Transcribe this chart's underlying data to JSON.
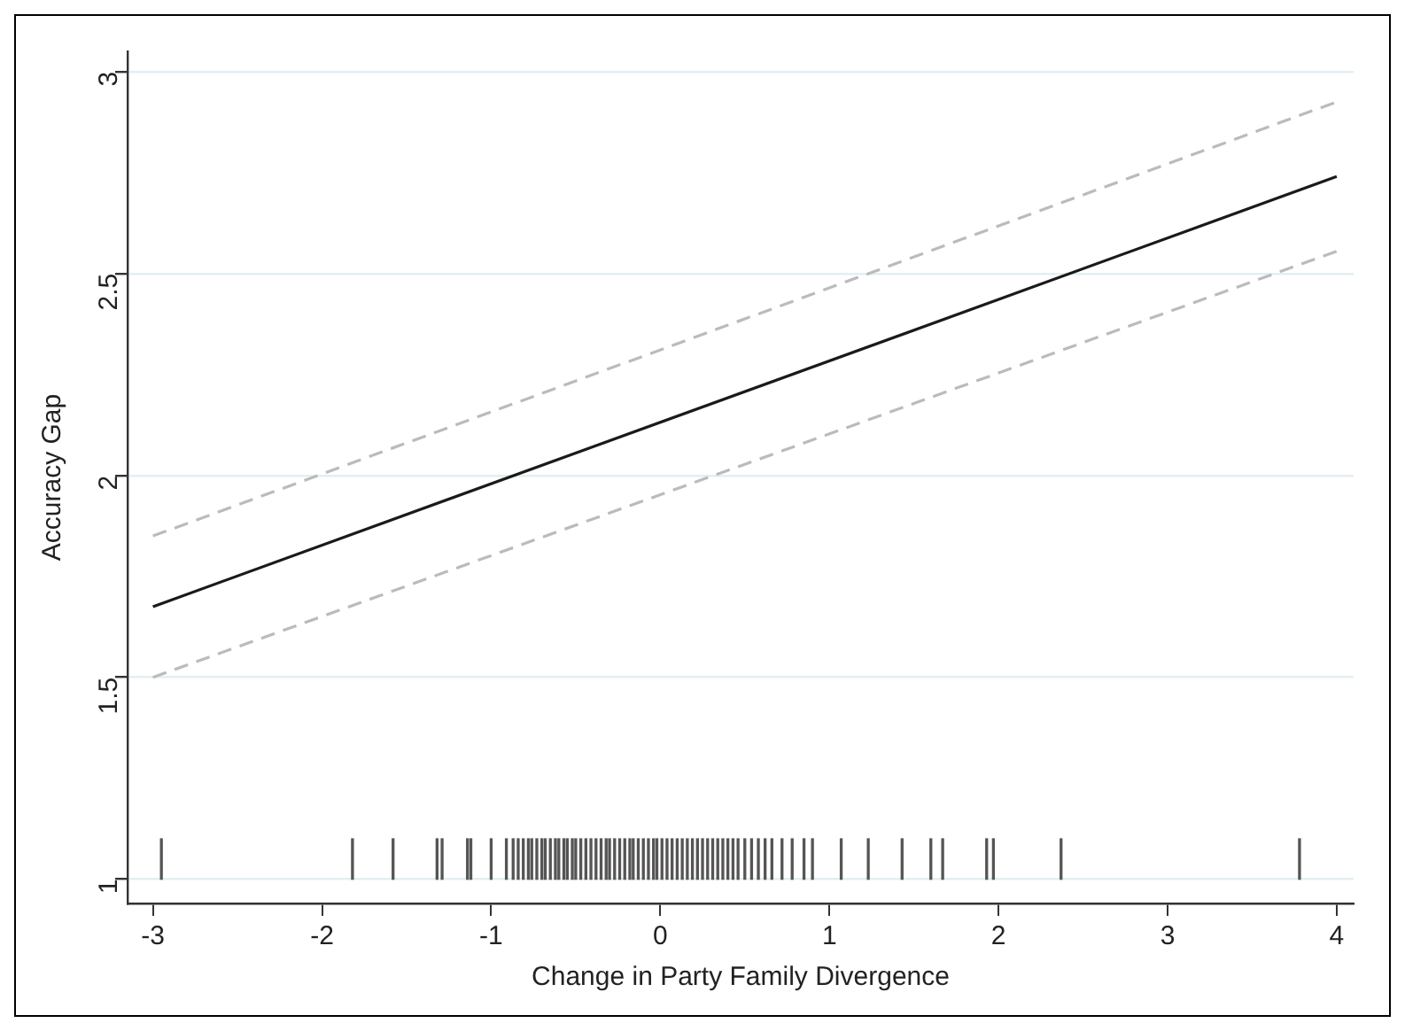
{
  "chart_data": {
    "type": "line",
    "xlabel": "Change in Party Family Divergence",
    "ylabel": "Accuracy Gap",
    "xlim": [
      -3.15,
      4.1
    ],
    "xticks": [
      -3,
      -2,
      -1,
      0,
      1,
      2,
      3,
      4
    ],
    "ylim": [
      0.94,
      3.05
    ],
    "yticks": [
      1,
      1.5,
      2,
      2.5,
      3
    ],
    "grid": "y",
    "legend": false,
    "series": [
      {
        "color": "#bbbbbb",
        "line_style": "dashed",
        "x": [
          -3,
          4
        ],
        "values": [
          1.85,
          2.925
        ]
      },
      {
        "color": "#bbbbbb",
        "line_style": "dashed",
        "x": [
          -3,
          4
        ],
        "values": [
          1.5,
          2.555
        ]
      },
      {
        "color": "#1a1a1a",
        "line_style": "solid",
        "x": [
          -3,
          4
        ],
        "values": [
          1.675,
          2.74
        ]
      },
      {
        "type": "bar",
        "color": "#555555",
        "base": [
          1,
          1,
          1,
          1,
          1,
          1,
          1,
          1,
          1,
          1,
          1,
          1,
          1,
          1,
          1,
          1,
          1,
          1,
          1,
          1,
          1,
          1,
          1,
          1,
          1,
          1,
          1,
          1,
          1,
          1,
          1,
          1,
          1,
          1,
          1,
          1,
          1,
          1,
          1,
          1,
          1,
          1,
          1,
          1,
          1,
          1,
          1,
          1,
          1,
          1,
          1,
          1,
          1,
          1,
          1,
          1,
          1,
          1,
          1,
          1,
          1,
          1,
          1,
          1,
          1,
          1,
          1,
          1,
          1,
          1,
          1,
          1,
          1,
          1,
          1
        ],
        "x": [
          -2.95,
          -1.82,
          -1.58,
          -1.32,
          -1.29,
          -1.14,
          -1.12,
          -1.0,
          -0.91,
          -0.87,
          -0.84,
          -0.81,
          -0.78,
          -0.76,
          -0.73,
          -0.7,
          -0.68,
          -0.65,
          -0.62,
          -0.6,
          -0.57,
          -0.55,
          -0.52,
          -0.5,
          -0.47,
          -0.44,
          -0.41,
          -0.38,
          -0.35,
          -0.32,
          -0.3,
          -0.27,
          -0.24,
          -0.21,
          -0.18,
          -0.16,
          -0.13,
          -0.1,
          -0.07,
          -0.04,
          -0.02,
          0.01,
          0.04,
          0.07,
          0.1,
          0.13,
          0.16,
          0.19,
          0.22,
          0.25,
          0.28,
          0.31,
          0.34,
          0.37,
          0.4,
          0.43,
          0.46,
          0.5,
          0.54,
          0.58,
          0.62,
          0.66,
          0.72,
          0.78,
          0.85,
          0.9,
          1.07,
          1.23,
          1.43,
          1.6,
          1.67,
          1.93,
          1.97,
          2.37,
          3.78
        ],
        "values": [
          0.1,
          0.1,
          0.1,
          0.1,
          0.1,
          0.1,
          0.1,
          0.1,
          0.1,
          0.1,
          0.1,
          0.1,
          0.1,
          0.1,
          0.1,
          0.1,
          0.1,
          0.1,
          0.1,
          0.1,
          0.1,
          0.1,
          0.1,
          0.1,
          0.1,
          0.1,
          0.1,
          0.1,
          0.1,
          0.1,
          0.1,
          0.1,
          0.1,
          0.1,
          0.1,
          0.1,
          0.1,
          0.1,
          0.1,
          0.1,
          0.1,
          0.1,
          0.1,
          0.1,
          0.1,
          0.1,
          0.1,
          0.1,
          0.1,
          0.1,
          0.1,
          0.1,
          0.1,
          0.1,
          0.1,
          0.1,
          0.1,
          0.1,
          0.1,
          0.1,
          0.1,
          0.1,
          0.1,
          0.1,
          0.1,
          0.1,
          0.1,
          0.1,
          0.1,
          0.1,
          0.1,
          0.1,
          0.1,
          0.1,
          0.1
        ]
      }
    ]
  }
}
